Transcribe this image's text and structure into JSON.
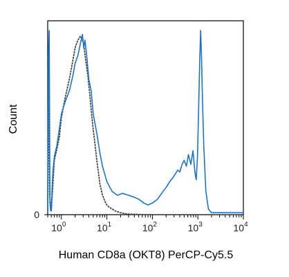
{
  "chart_data": {
    "type": "line",
    "title": "",
    "xlabel": "Human CD8a (OKT8) PerCP-Cy5.5",
    "ylabel": "Count",
    "x_scale": "log",
    "xlim": [
      0.5,
      10000
    ],
    "ylim": [
      0,
      100
    ],
    "grid": false,
    "legend": "none",
    "x_tick_labels": [
      {
        "value": 1,
        "base": "10",
        "exp": "0"
      },
      {
        "value": 10,
        "base": "10",
        "exp": "1"
      },
      {
        "value": 100,
        "base": "10",
        "exp": "2"
      },
      {
        "value": 1000,
        "base": "10",
        "exp": "3"
      },
      {
        "value": 10000,
        "base": "10",
        "exp": "4"
      }
    ],
    "y_tick_labels": [
      {
        "value": 0,
        "label": "0"
      }
    ],
    "series": [
      {
        "style": "solid",
        "color": "#1a73c9",
        "x": [
          0.5,
          0.52,
          0.54,
          0.56,
          0.58,
          0.6,
          0.62,
          0.65,
          0.7,
          0.8,
          0.9,
          1.0,
          1.2,
          1.5,
          1.8,
          2.0,
          2.3,
          2.6,
          2.9,
          3.1,
          3.3,
          3.6,
          4.0,
          4.5,
          5,
          6,
          7,
          8,
          10,
          13,
          17,
          22,
          30,
          40,
          50,
          65,
          80,
          100,
          130,
          160,
          200,
          240,
          280,
          320,
          360,
          400,
          450,
          500,
          560,
          620,
          700,
          780,
          860,
          920,
          980,
          1040,
          1100,
          1150,
          1200,
          1260,
          1350,
          1500,
          1700,
          2000,
          2500,
          3000,
          4000,
          6000,
          10000
        ],
        "y": [
          2,
          85,
          95,
          6,
          2,
          2,
          12,
          22,
          30,
          36,
          44,
          52,
          58,
          64,
          72,
          78,
          82,
          88,
          93,
          86,
          90,
          82,
          70,
          64,
          52,
          42,
          32,
          25,
          17,
          12,
          10,
          11,
          10,
          9,
          8,
          6,
          5,
          6,
          8,
          11,
          14,
          17,
          19,
          21,
          23,
          22,
          26,
          28,
          25,
          31,
          26,
          33,
          22,
          18,
          30,
          55,
          80,
          95,
          82,
          60,
          35,
          12,
          3,
          1,
          1,
          1,
          1,
          1,
          1
        ]
      },
      {
        "style": "dotted",
        "color": "#444444",
        "x": [
          0.5,
          0.52,
          0.55,
          0.6,
          0.7,
          0.8,
          0.9,
          1.0,
          1.2,
          1.5,
          1.8,
          2.0,
          2.3,
          2.6,
          2.9,
          3.1,
          3.4,
          3.8,
          4.2,
          4.6,
          5,
          5.5,
          6,
          6.5,
          7,
          8,
          9,
          10,
          11,
          13,
          15,
          17,
          20,
          25,
          30,
          40,
          60,
          100,
          1000,
          10000
        ],
        "y": [
          2,
          80,
          10,
          2,
          28,
          34,
          40,
          50,
          60,
          70,
          80,
          86,
          90,
          92,
          90,
          88,
          80,
          72,
          62,
          52,
          44,
          36,
          28,
          22,
          16,
          10,
          7,
          5,
          4,
          3,
          2,
          1.5,
          1,
          0.5,
          0.3,
          0.2,
          0.1,
          0,
          0,
          0
        ]
      }
    ]
  }
}
